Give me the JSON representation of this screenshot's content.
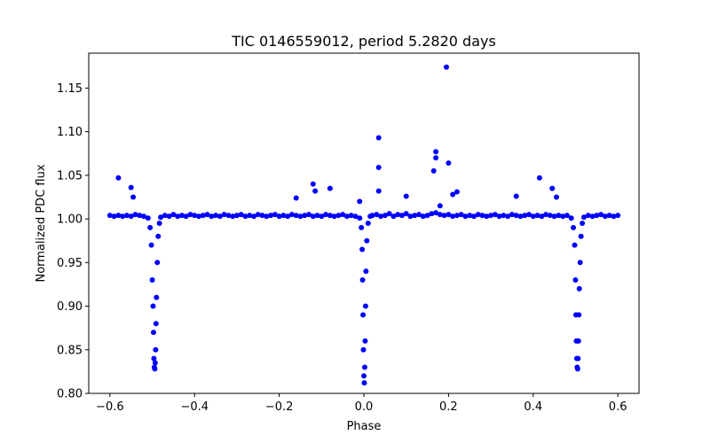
{
  "chart_data": {
    "type": "scatter",
    "title": "TIC 0146559012, period 5.2820 days",
    "xlabel": "Phase",
    "ylabel": "Normalized PDC flux",
    "xlim": [
      -0.65,
      0.65
    ],
    "ylim": [
      0.8,
      1.19
    ],
    "xticks": [
      -0.6,
      -0.4,
      -0.2,
      0.0,
      0.2,
      0.4,
      0.6
    ],
    "xtick_labels": [
      "−0.6",
      "−0.4",
      "−0.2",
      "0.0",
      "0.2",
      "0.4",
      "0.6"
    ],
    "yticks": [
      0.8,
      0.85,
      0.9,
      0.95,
      1.0,
      1.05,
      1.1,
      1.15
    ],
    "ytick_labels": [
      "0.80",
      "0.85",
      "0.90",
      "0.95",
      "1.00",
      "1.05",
      "1.10",
      "1.15"
    ],
    "grid": false,
    "marker_color": "#0000ff",
    "series": [
      {
        "points": [
          [
            -0.6,
            1.004
          ],
          [
            -0.59,
            1.003
          ],
          [
            -0.58,
            1.004
          ],
          [
            -0.57,
            1.003
          ],
          [
            -0.56,
            1.004
          ],
          [
            -0.55,
            1.003
          ],
          [
            -0.54,
            1.005
          ],
          [
            -0.53,
            1.004
          ],
          [
            -0.52,
            1.003
          ],
          [
            -0.51,
            1.001
          ],
          [
            -0.505,
            0.99
          ],
          [
            -0.502,
            0.97
          ],
          [
            -0.5,
            0.93
          ],
          [
            -0.498,
            0.9
          ],
          [
            -0.497,
            0.87
          ],
          [
            -0.496,
            0.84
          ],
          [
            -0.495,
            0.83
          ],
          [
            -0.494,
            0.828
          ],
          [
            -0.493,
            0.835
          ],
          [
            -0.492,
            0.85
          ],
          [
            -0.491,
            0.88
          ],
          [
            -0.49,
            0.91
          ],
          [
            -0.488,
            0.95
          ],
          [
            -0.486,
            0.98
          ],
          [
            -0.483,
            0.995
          ],
          [
            -0.48,
            1.002
          ],
          [
            -0.47,
            1.004
          ],
          [
            -0.46,
            1.003
          ],
          [
            -0.45,
            1.005
          ],
          [
            -0.44,
            1.003
          ],
          [
            -0.43,
            1.004
          ],
          [
            -0.42,
            1.003
          ],
          [
            -0.41,
            1.005
          ],
          [
            -0.4,
            1.004
          ],
          [
            -0.39,
            1.003
          ],
          [
            -0.38,
            1.004
          ],
          [
            -0.37,
            1.005
          ],
          [
            -0.36,
            1.003
          ],
          [
            -0.35,
            1.004
          ],
          [
            -0.34,
            1.003
          ],
          [
            -0.33,
            1.005
          ],
          [
            -0.32,
            1.004
          ],
          [
            -0.31,
            1.003
          ],
          [
            -0.3,
            1.004
          ],
          [
            -0.29,
            1.005
          ],
          [
            -0.28,
            1.003
          ],
          [
            -0.27,
            1.004
          ],
          [
            -0.26,
            1.003
          ],
          [
            -0.25,
            1.005
          ],
          [
            -0.24,
            1.004
          ],
          [
            -0.23,
            1.003
          ],
          [
            -0.22,
            1.004
          ],
          [
            -0.21,
            1.005
          ],
          [
            -0.2,
            1.003
          ],
          [
            -0.19,
            1.004
          ],
          [
            -0.18,
            1.003
          ],
          [
            -0.17,
            1.005
          ],
          [
            -0.16,
            1.004
          ],
          [
            -0.15,
            1.003
          ],
          [
            -0.14,
            1.004
          ],
          [
            -0.13,
            1.005
          ],
          [
            -0.12,
            1.003
          ],
          [
            -0.11,
            1.004
          ],
          [
            -0.1,
            1.003
          ],
          [
            -0.09,
            1.005
          ],
          [
            -0.08,
            1.004
          ],
          [
            -0.07,
            1.003
          ],
          [
            -0.06,
            1.004
          ],
          [
            -0.05,
            1.005
          ],
          [
            -0.04,
            1.003
          ],
          [
            -0.03,
            1.004
          ],
          [
            -0.02,
            1.003
          ],
          [
            -0.01,
            1.001
          ],
          [
            -0.006,
            0.99
          ],
          [
            -0.004,
            0.965
          ],
          [
            -0.003,
            0.93
          ],
          [
            -0.002,
            0.89
          ],
          [
            -0.001,
            0.85
          ],
          [
            0.0,
            0.82
          ],
          [
            0.001,
            0.812
          ],
          [
            0.002,
            0.83
          ],
          [
            0.003,
            0.86
          ],
          [
            0.004,
            0.9
          ],
          [
            0.005,
            0.94
          ],
          [
            0.007,
            0.975
          ],
          [
            0.01,
            0.995
          ],
          [
            0.015,
            1.003
          ],
          [
            0.02,
            1.004
          ],
          [
            0.03,
            1.005
          ],
          [
            0.04,
            1.003
          ],
          [
            0.05,
            1.004
          ],
          [
            0.06,
            1.006
          ],
          [
            0.07,
            1.003
          ],
          [
            0.08,
            1.005
          ],
          [
            0.09,
            1.004
          ],
          [
            0.1,
            1.006
          ],
          [
            0.11,
            1.003
          ],
          [
            0.12,
            1.004
          ],
          [
            0.13,
            1.005
          ],
          [
            0.14,
            1.003
          ],
          [
            0.15,
            1.004
          ],
          [
            0.16,
            1.006
          ],
          [
            0.17,
            1.007
          ],
          [
            0.18,
            1.005
          ],
          [
            0.19,
            1.004
          ],
          [
            0.2,
            1.005
          ],
          [
            0.21,
            1.003
          ],
          [
            0.22,
            1.004
          ],
          [
            0.23,
            1.005
          ],
          [
            0.24,
            1.003
          ],
          [
            0.25,
            1.004
          ],
          [
            0.26,
            1.003
          ],
          [
            0.27,
            1.005
          ],
          [
            0.28,
            1.004
          ],
          [
            0.29,
            1.003
          ],
          [
            0.3,
            1.004
          ],
          [
            0.31,
            1.005
          ],
          [
            0.32,
            1.003
          ],
          [
            0.33,
            1.004
          ],
          [
            0.34,
            1.003
          ],
          [
            0.35,
            1.005
          ],
          [
            0.36,
            1.004
          ],
          [
            0.37,
            1.003
          ],
          [
            0.38,
            1.004
          ],
          [
            0.39,
            1.005
          ],
          [
            0.4,
            1.003
          ],
          [
            0.41,
            1.004
          ],
          [
            0.42,
            1.003
          ],
          [
            0.43,
            1.005
          ],
          [
            0.44,
            1.004
          ],
          [
            0.45,
            1.003
          ],
          [
            0.46,
            1.004
          ],
          [
            0.47,
            1.003
          ],
          [
            0.48,
            1.004
          ],
          [
            0.49,
            1.001
          ],
          [
            0.495,
            0.99
          ],
          [
            0.498,
            0.97
          ],
          [
            0.5,
            0.93
          ],
          [
            0.501,
            0.89
          ],
          [
            0.502,
            0.86
          ],
          [
            0.503,
            0.84
          ],
          [
            0.504,
            0.83
          ],
          [
            0.505,
            0.828
          ],
          [
            0.506,
            0.84
          ],
          [
            0.507,
            0.86
          ],
          [
            0.508,
            0.89
          ],
          [
            0.509,
            0.92
          ],
          [
            0.511,
            0.95
          ],
          [
            0.513,
            0.98
          ],
          [
            0.516,
            0.995
          ],
          [
            0.52,
            1.002
          ],
          [
            0.53,
            1.004
          ],
          [
            0.54,
            1.003
          ],
          [
            0.55,
            1.004
          ],
          [
            0.56,
            1.005
          ],
          [
            0.57,
            1.003
          ],
          [
            0.58,
            1.004
          ],
          [
            0.59,
            1.003
          ],
          [
            0.6,
            1.004
          ],
          [
            -0.58,
            1.047
          ],
          [
            -0.55,
            1.036
          ],
          [
            -0.545,
            1.025
          ],
          [
            -0.12,
            1.04
          ],
          [
            -0.115,
            1.032
          ],
          [
            -0.08,
            1.035
          ],
          [
            -0.16,
            1.024
          ],
          [
            0.035,
            1.093
          ],
          [
            0.035,
            1.059
          ],
          [
            0.035,
            1.032
          ],
          [
            0.1,
            1.026
          ],
          [
            0.17,
            1.077
          ],
          [
            0.17,
            1.07
          ],
          [
            0.165,
            1.055
          ],
          [
            0.195,
            1.174
          ],
          [
            0.2,
            1.064
          ],
          [
            0.22,
            1.031
          ],
          [
            0.21,
            1.028
          ],
          [
            0.18,
            1.015
          ],
          [
            0.36,
            1.026
          ],
          [
            0.415,
            1.047
          ],
          [
            0.445,
            1.035
          ],
          [
            0.455,
            1.025
          ],
          [
            -0.01,
            1.02
          ]
        ]
      }
    ]
  }
}
